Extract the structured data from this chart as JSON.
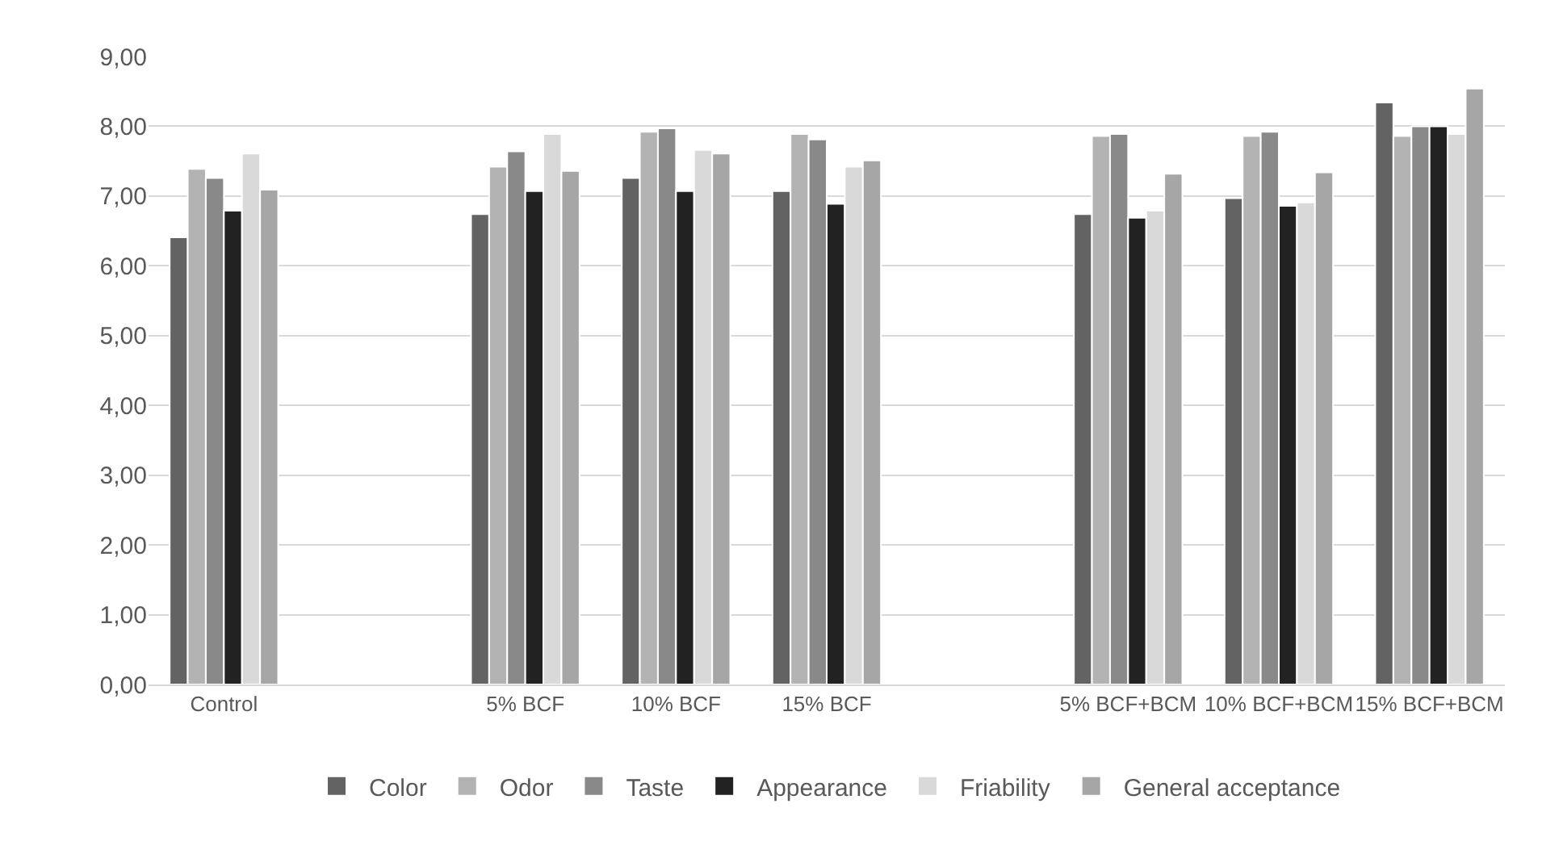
{
  "chart_data": {
    "type": "bar",
    "categories": [
      "Control",
      null,
      "5% BCF",
      "10% BCF",
      "15% BCF",
      null,
      "5% BCF+BCM",
      "10% BCF+BCM",
      "15% BCF+BCM"
    ],
    "series": [
      {
        "name": "Color",
        "color": "#636363",
        "values": [
          6.41,
          null,
          6.74,
          7.26,
          7.07,
          null,
          6.74,
          6.97,
          8.34
        ]
      },
      {
        "name": "Odor",
        "color": "#b3b3b3",
        "values": [
          7.39,
          null,
          7.42,
          7.92,
          7.89,
          null,
          7.86,
          7.86,
          7.86
        ]
      },
      {
        "name": "Taste",
        "color": "#898989",
        "values": [
          7.26,
          null,
          7.64,
          7.97,
          7.81,
          null,
          7.89,
          7.92,
          8.0
        ]
      },
      {
        "name": "Appearance",
        "color": "#222222",
        "values": [
          6.79,
          null,
          7.07,
          7.07,
          6.89,
          null,
          6.69,
          6.86,
          8.0
        ]
      },
      {
        "name": "Friability",
        "color": "#d9d9d9",
        "values": [
          7.61,
          null,
          7.89,
          7.66,
          7.42,
          null,
          6.79,
          6.91,
          7.89
        ]
      },
      {
        "name": "General acceptance",
        "color": "#a6a6a6",
        "values": [
          7.09,
          null,
          7.36,
          7.61,
          7.51,
          null,
          7.32,
          7.34,
          8.54
        ]
      }
    ],
    "ylim": [
      0,
      9
    ],
    "yticks": [
      {
        "value": 0,
        "label": "0,00"
      },
      {
        "value": 1,
        "label": "1,00"
      },
      {
        "value": 2,
        "label": "2,00"
      },
      {
        "value": 3,
        "label": "3,00"
      },
      {
        "value": 4,
        "label": "4,00"
      },
      {
        "value": 5,
        "label": "5,00"
      },
      {
        "value": 6,
        "label": "6,00"
      },
      {
        "value": 7,
        "label": "7,00"
      },
      {
        "value": 8,
        "label": "8,00"
      },
      {
        "value": 9,
        "label": "9,00"
      }
    ],
    "grid": "y",
    "legend": "bottom"
  }
}
